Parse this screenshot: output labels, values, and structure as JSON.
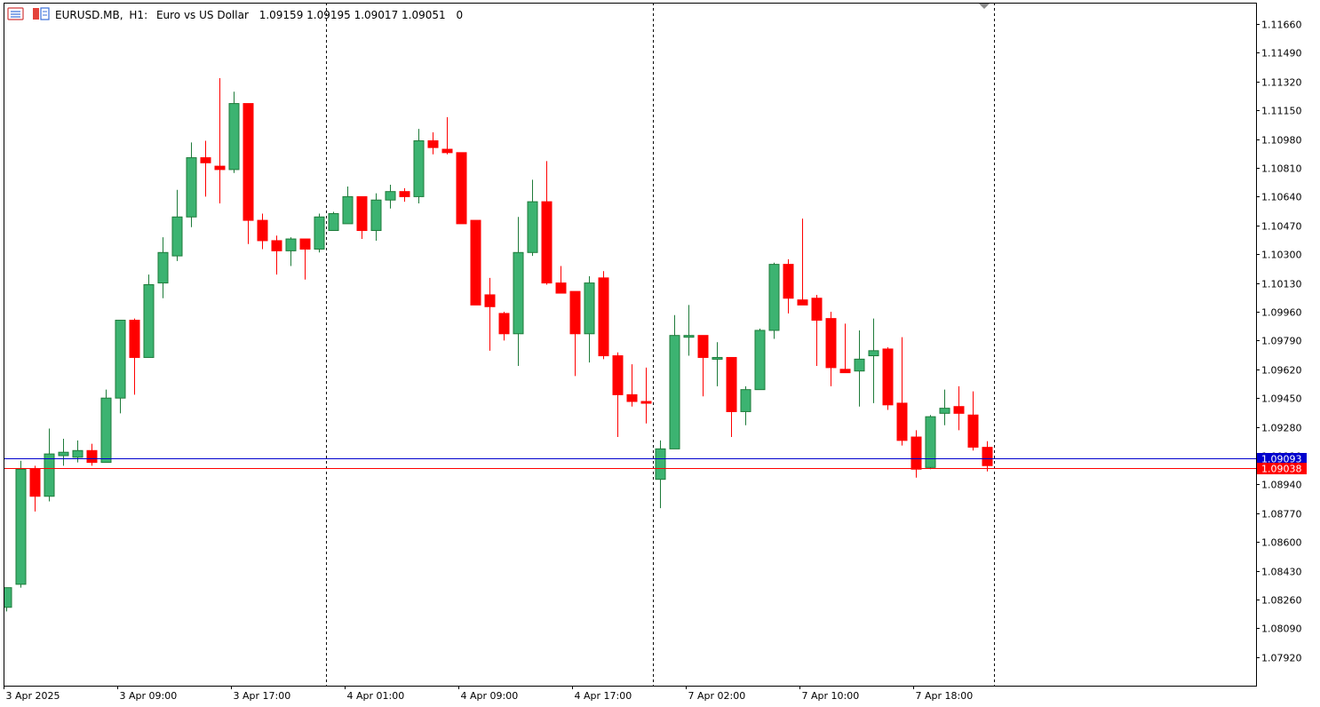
{
  "header": {
    "symbol": "EURUSD.MB",
    "timeframe": "H1:",
    "description": "Euro vs US Dollar",
    "ohlc": "1.09159 1.09195 1.09017 1.09051",
    "volume": "0"
  },
  "colors": {
    "bull": "#3cb371",
    "bear": "#ff0000",
    "bid_line": "#0000cd",
    "ask_line": "#ff0000",
    "grid_separator": "#000000",
    "axis": "#000000",
    "background": "#ffffff"
  },
  "chart_data": {
    "type": "candlestick",
    "symbol": "EURUSD.MB",
    "timeframe": "H1",
    "ylim": [
      1.0775,
      1.1175
    ],
    "price_ticks": [
      "1.11660",
      "1.11490",
      "1.11320",
      "1.11150",
      "1.10980",
      "1.10810",
      "1.10640",
      "1.10470",
      "1.10300",
      "1.10130",
      "1.09960",
      "1.09790",
      "1.09620",
      "1.09450",
      "1.09280",
      "1.09110",
      "1.08940",
      "1.08770",
      "1.08600",
      "1.08430",
      "1.08260",
      "1.08090",
      "1.07920"
    ],
    "time_labels": [
      {
        "label": "3 Apr 2025",
        "bar": 0
      },
      {
        "label": "3 Apr 09:00",
        "bar": 8
      },
      {
        "label": "3 Apr 17:00",
        "bar": 16
      },
      {
        "label": "4 Apr 01:00",
        "bar": 24
      },
      {
        "label": "4 Apr 09:00",
        "bar": 32
      },
      {
        "label": "4 Apr 17:00",
        "bar": 40
      },
      {
        "label": "7 Apr 02:00",
        "bar": 48
      },
      {
        "label": "7 Apr 10:00",
        "bar": 56
      },
      {
        "label": "7 Apr 18:00",
        "bar": 64
      }
    ],
    "separators_after_bar": [
      22.5,
      45.5,
      69.5
    ],
    "bid": {
      "value": 1.09093,
      "label": "1.09093"
    },
    "ask": {
      "value": 1.09038,
      "label": "1.09038"
    },
    "candles": [
      [
        1.08214,
        1.0833,
        1.0819,
        1.0833
      ],
      [
        1.0835,
        1.0908,
        1.0833,
        1.0903
      ],
      [
        1.0903,
        1.0905,
        1.0878,
        1.0887
      ],
      [
        1.0887,
        1.0927,
        1.0884,
        1.0912
      ],
      [
        1.0911,
        1.0921,
        1.0905,
        1.0913
      ],
      [
        1.091,
        1.092,
        1.0907,
        1.0914
      ],
      [
        1.0914,
        1.0918,
        1.0905,
        1.0907
      ],
      [
        1.0907,
        1.095,
        1.0907,
        1.0945
      ],
      [
        1.0945,
        1.099,
        1.0936,
        1.0991
      ],
      [
        1.0991,
        1.0992,
        1.0947,
        1.0969
      ],
      [
        1.0969,
        1.1018,
        1.0969,
        1.1012
      ],
      [
        1.1013,
        1.104,
        1.1004,
        1.1031
      ],
      [
        1.1029,
        1.1068,
        1.1026,
        1.1052
      ],
      [
        1.1052,
        1.1096,
        1.1046,
        1.1087
      ],
      [
        1.1087,
        1.1097,
        1.1064,
        1.1084
      ],
      [
        1.1082,
        1.1134,
        1.106,
        1.108
      ],
      [
        1.108,
        1.1126,
        1.1078,
        1.1119
      ],
      [
        1.1119,
        1.1119,
        1.1036,
        1.105
      ],
      [
        1.105,
        1.1054,
        1.1033,
        1.1038
      ],
      [
        1.1038,
        1.1041,
        1.1018,
        1.1032
      ],
      [
        1.1032,
        1.104,
        1.1023,
        1.1039
      ],
      [
        1.1039,
        1.1039,
        1.1015,
        1.1033
      ],
      [
        1.1033,
        1.1054,
        1.1031,
        1.1052
      ],
      [
        1.1044,
        1.1055,
        1.1044,
        1.1054
      ],
      [
        1.1048,
        1.107,
        1.1048,
        1.1064
      ],
      [
        1.1064,
        1.1064,
        1.1039,
        1.1044
      ],
      [
        1.1044,
        1.1066,
        1.1038,
        1.1062
      ],
      [
        1.1062,
        1.1071,
        1.1057,
        1.1067
      ],
      [
        1.1067,
        1.1069,
        1.1061,
        1.1064
      ],
      [
        1.1064,
        1.1104,
        1.106,
        1.1097
      ],
      [
        1.1097,
        1.1102,
        1.1089,
        1.1093
      ],
      [
        1.1092,
        1.1111,
        1.1089,
        1.109
      ],
      [
        1.109,
        1.109,
        1.1048,
        1.1048
      ],
      [
        1.105,
        1.105,
        1.1,
        1.1
      ],
      [
        1.1006,
        1.1016,
        1.0973,
        1.0999
      ],
      [
        1.0995,
        1.0996,
        1.0979,
        1.0983
      ],
      [
        1.0983,
        1.1052,
        1.0964,
        1.1031
      ],
      [
        1.1031,
        1.1074,
        1.1029,
        1.1061
      ],
      [
        1.1061,
        1.1085,
        1.1012,
        1.1013
      ],
      [
        1.1013,
        1.1023,
        1.1007,
        1.1007
      ],
      [
        1.1008,
        1.1008,
        1.0958,
        1.0983
      ],
      [
        1.0983,
        1.1017,
        1.0966,
        1.1013
      ],
      [
        1.1016,
        1.102,
        1.0968,
        1.097
      ],
      [
        1.097,
        1.0972,
        1.0922,
        1.0947
      ],
      [
        1.0947,
        1.0965,
        1.094,
        1.0943
      ],
      [
        1.0943,
        1.0963,
        1.093,
        1.0942
      ],
      [
        1.0897,
        1.092,
        1.088,
        1.0915
      ],
      [
        1.0915,
        1.0994,
        1.0915,
        1.0982
      ],
      [
        1.0982,
        1.1,
        1.097,
        1.0982
      ],
      [
        1.0982,
        1.0982,
        1.0946,
        1.0969
      ],
      [
        1.0969,
        1.0978,
        1.0952,
        1.0969
      ],
      [
        1.0969,
        1.0969,
        1.0922,
        1.0937
      ],
      [
        1.0937,
        1.0952,
        1.0929,
        1.095
      ],
      [
        1.095,
        1.0986,
        1.095,
        1.0985
      ],
      [
        1.0985,
        1.1025,
        1.098,
        1.1024
      ],
      [
        1.1024,
        1.1027,
        1.0995,
        1.1004
      ],
      [
        1.1003,
        1.1051,
        1.1,
        1.1
      ],
      [
        1.1004,
        1.1006,
        1.0964,
        1.0991
      ],
      [
        1.0992,
        1.0996,
        1.0952,
        1.0963
      ],
      [
        1.0962,
        1.0989,
        1.096,
        1.096
      ],
      [
        1.0961,
        1.0985,
        1.094,
        1.0968
      ],
      [
        1.097,
        1.0992,
        1.0942,
        1.0973
      ],
      [
        1.0974,
        1.0975,
        1.0938,
        1.0941
      ],
      [
        1.0942,
        1.0981,
        1.0917,
        1.092
      ],
      [
        1.0922,
        1.0926,
        1.0898,
        1.0903
      ],
      [
        1.0904,
        1.0935,
        1.0903,
        1.0934
      ],
      [
        1.0936,
        1.095,
        1.0929,
        1.0939
      ],
      [
        1.094,
        1.0952,
        1.0926,
        1.0936
      ],
      [
        1.0935,
        1.0949,
        1.0914,
        1.0916
      ],
      [
        1.09159,
        1.09195,
        1.09017,
        1.09051
      ]
    ]
  }
}
